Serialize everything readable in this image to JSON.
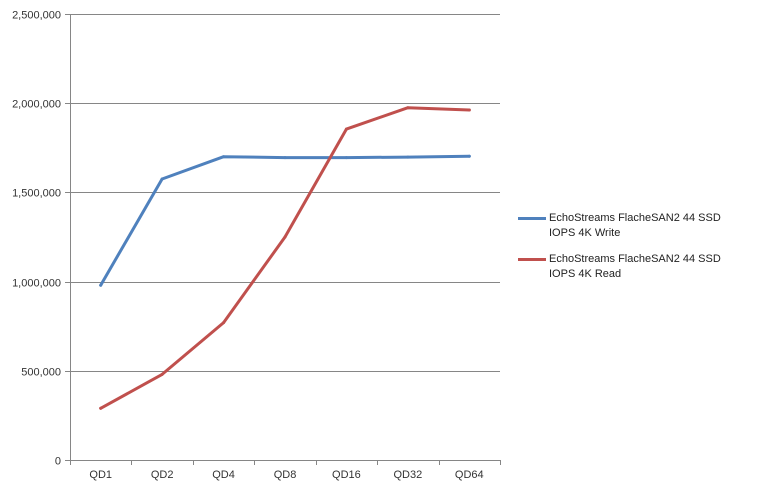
{
  "chart_data": {
    "type": "line",
    "title": "",
    "xlabel": "",
    "ylabel": "",
    "categories": [
      "QD1",
      "QD2",
      "QD4",
      "QD8",
      "QD16",
      "QD32",
      "QD64"
    ],
    "ylim": [
      0,
      2500000
    ],
    "yticks": [
      0,
      500000,
      1000000,
      1500000,
      2000000,
      2500000
    ],
    "ytick_labels": [
      "0",
      "500,000",
      "1,000,000",
      "1,500,000",
      "2,000,000",
      "2,500,000"
    ],
    "grid": "horizontal",
    "legend_position": "right",
    "series": [
      {
        "name": "EchoStreams FlacheSAN2 44 SSD IOPS 4K Write",
        "color": "#4f81bd",
        "values": [
          980000,
          1575000,
          1700000,
          1695000,
          1695000,
          1698000,
          1703000
        ]
      },
      {
        "name": "EchoStreams FlacheSAN2 44 SSD IOPS 4K Read",
        "color": "#c0504d",
        "values": [
          290000,
          480000,
          770000,
          1250000,
          1855000,
          1975000,
          1962000
        ]
      }
    ],
    "colors": {
      "gridline": "#868686",
      "axis": "#868686",
      "text": "#333333"
    }
  }
}
